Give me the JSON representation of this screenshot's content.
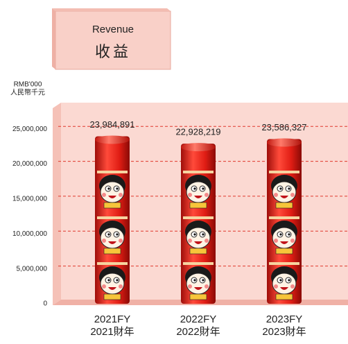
{
  "chart_data": {
    "type": "bar",
    "title": "Revenue",
    "subtitle": "收益",
    "ylabel": [
      "RMB'000",
      "人民幣千元"
    ],
    "categories": [
      [
        "2021FY",
        "2021財年"
      ],
      [
        "2022FY",
        "2022財年"
      ],
      [
        "2023FY",
        "2023財年"
      ]
    ],
    "values": [
      23984891,
      22928219,
      23586327
    ],
    "value_labels": [
      "23,984,891",
      "22,928,219",
      "23,586,327"
    ],
    "color": "#e8231b",
    "ylim": [
      0,
      28000000
    ],
    "yticks": [
      0,
      {
        "value": 5000000,
        "label": "5,000,000"
      },
      {
        "value": 10000000,
        "label": "10,000,000"
      },
      {
        "value": 15000000,
        "label": "15,000,000"
      },
      {
        "value": 20000000,
        "label": "20,000,000"
      },
      {
        "value": 25000000,
        "label": "25,000,000"
      }
    ],
    "grid": true
  }
}
